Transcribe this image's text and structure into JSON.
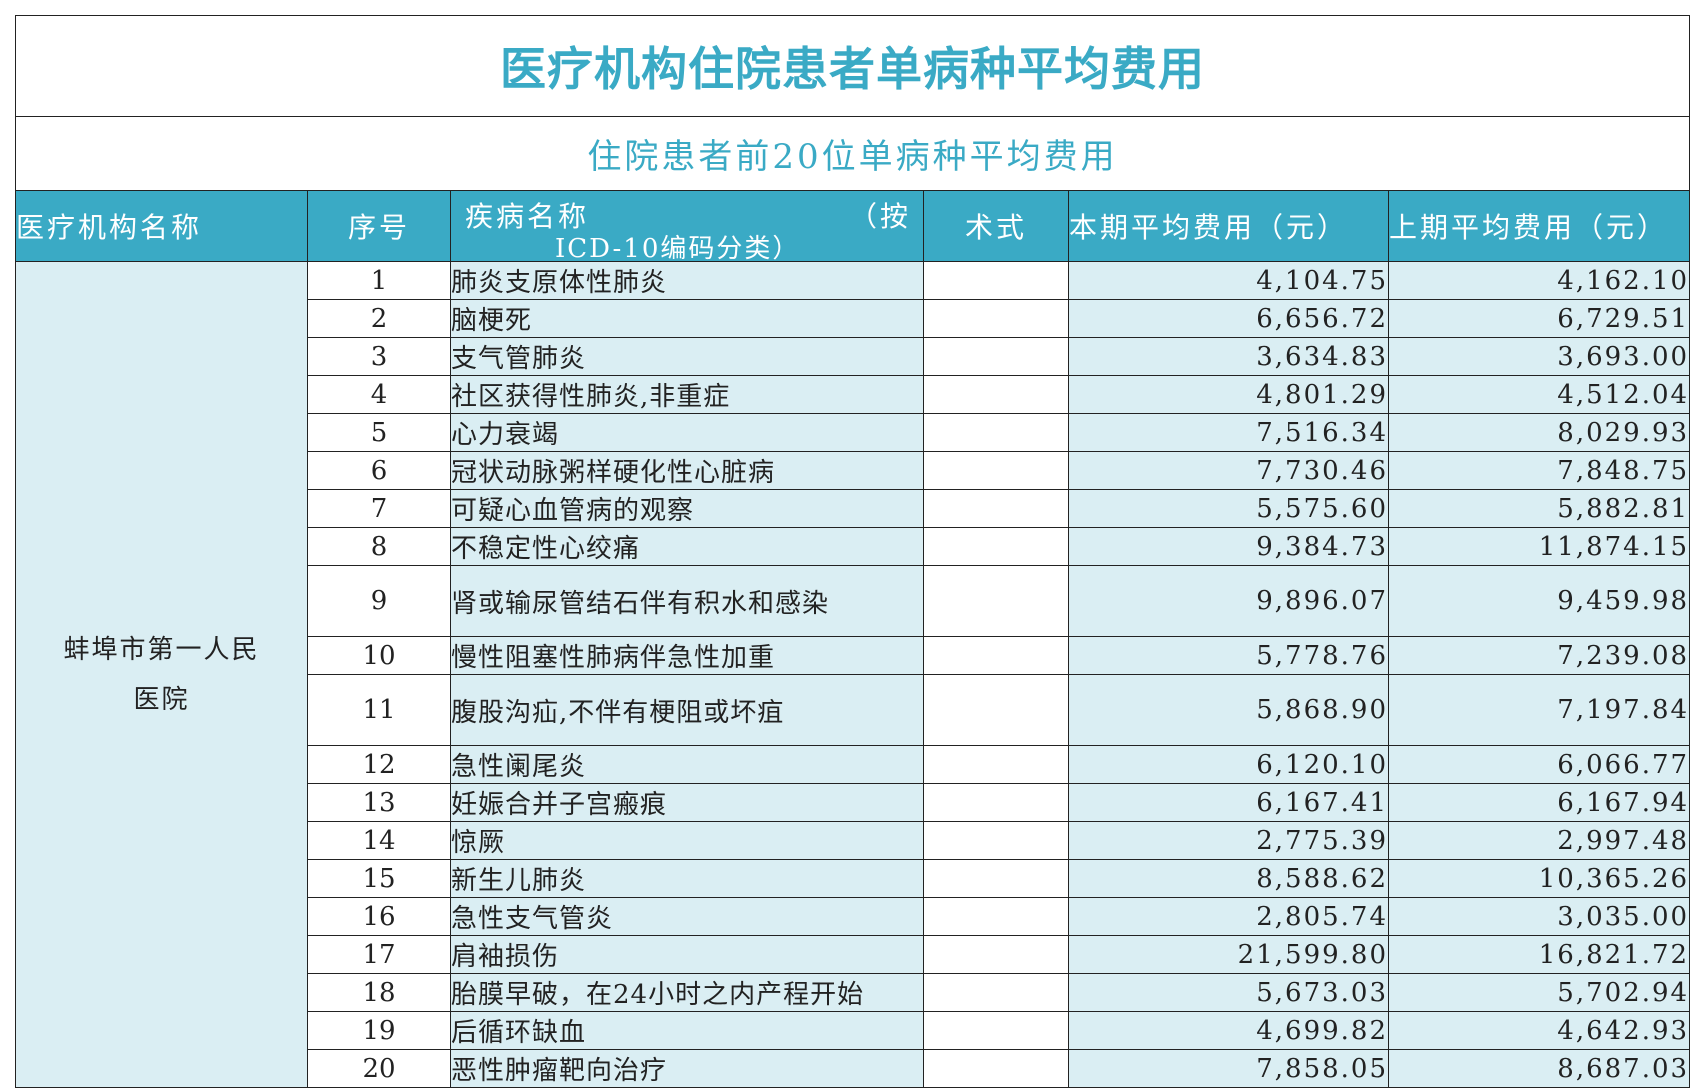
{
  "title": "医疗机构住院患者单病种平均费用",
  "subtitle": "住院患者前20位单病种平均费用",
  "headers": {
    "org": "医疗机构名称",
    "index": "序号",
    "disease_line1": "疾病名称",
    "disease_paren": "（按",
    "disease_line2": "ICD-10编码分类）",
    "operation": "术式",
    "current": "本期平均费用（元）",
    "previous": "上期平均费用（元）"
  },
  "organization_line1": "蚌埠市第一人民",
  "organization_line2": "医院",
  "rows": [
    {
      "index": "1",
      "name": "肺炎支原体性肺炎",
      "operation": "",
      "current": "4,104.75",
      "previous": "4,162.10"
    },
    {
      "index": "2",
      "name": "脑梗死",
      "operation": "",
      "current": "6,656.72",
      "previous": "6,729.51"
    },
    {
      "index": "3",
      "name": "支气管肺炎",
      "operation": "",
      "current": "3,634.83",
      "previous": "3,693.00"
    },
    {
      "index": "4",
      "name": "社区获得性肺炎,非重症",
      "operation": "",
      "current": "4,801.29",
      "previous": "4,512.04"
    },
    {
      "index": "5",
      "name": "心力衰竭",
      "operation": "",
      "current": "7,516.34",
      "previous": "8,029.93"
    },
    {
      "index": "6",
      "name": "冠状动脉粥样硬化性心脏病",
      "operation": "",
      "current": "7,730.46",
      "previous": "7,848.75"
    },
    {
      "index": "7",
      "name": "可疑心血管病的观察",
      "operation": "",
      "current": "5,575.60",
      "previous": "5,882.81"
    },
    {
      "index": "8",
      "name": "不稳定性心绞痛",
      "operation": "",
      "current": "9,384.73",
      "previous": "11,874.15"
    },
    {
      "index": "9",
      "name": "肾或输尿管结石伴有积水和感染",
      "operation": "",
      "current": "9,896.07",
      "previous": "9,459.98"
    },
    {
      "index": "10",
      "name": "慢性阻塞性肺病伴急性加重",
      "operation": "",
      "current": "5,778.76",
      "previous": "7,239.08"
    },
    {
      "index": "11",
      "name": "腹股沟疝,不伴有梗阻或坏疽",
      "operation": "",
      "current": "5,868.90",
      "previous": "7,197.84"
    },
    {
      "index": "12",
      "name": "急性阑尾炎",
      "operation": "",
      "current": "6,120.10",
      "previous": "6,066.77"
    },
    {
      "index": "13",
      "name": "妊娠合并子宫瘢痕",
      "operation": "",
      "current": "6,167.41",
      "previous": "6,167.94"
    },
    {
      "index": "14",
      "name": "惊厥",
      "operation": "",
      "current": "2,775.39",
      "previous": "2,997.48"
    },
    {
      "index": "15",
      "name": "新生儿肺炎",
      "operation": "",
      "current": "8,588.62",
      "previous": "10,365.26"
    },
    {
      "index": "16",
      "name": "急性支气管炎",
      "operation": "",
      "current": "2,805.74",
      "previous": "3,035.00"
    },
    {
      "index": "17",
      "name": "肩袖损伤",
      "operation": "",
      "current": "21,599.80",
      "previous": "16,821.72"
    },
    {
      "index": "18",
      "name": "胎膜早破，在24小时之内产程开始",
      "operation": "",
      "current": "5,673.03",
      "previous": "5,702.94"
    },
    {
      "index": "19",
      "name": "后循环缺血",
      "operation": "",
      "current": "4,699.82",
      "previous": "4,642.93"
    },
    {
      "index": "20",
      "name": "恶性肿瘤靶向治疗",
      "operation": "",
      "current": "7,858.05",
      "previous": "8,687.03"
    }
  ]
}
